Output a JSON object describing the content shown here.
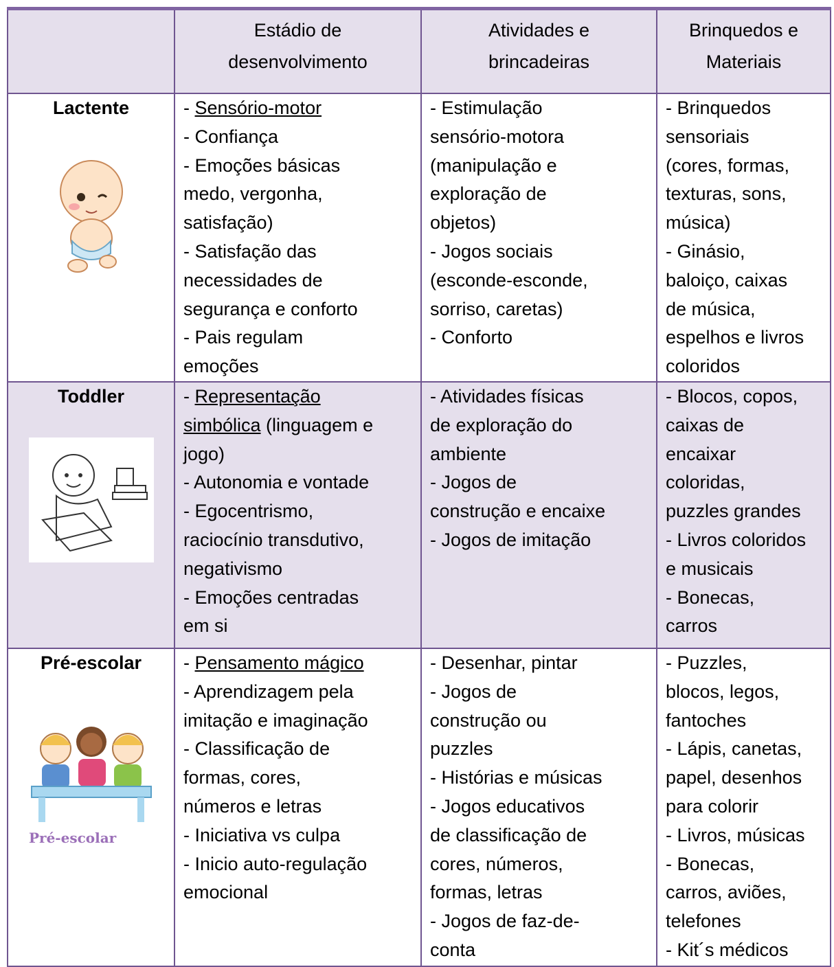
{
  "table": {
    "header": [
      [
        "Estádio de",
        "desenvolvimento"
      ],
      [
        "Atividades e",
        "brincadeiras"
      ],
      [
        "Brinquedos e",
        "Materiais"
      ]
    ],
    "rows": [
      {
        "stage": "Lactente",
        "development": [
          {
            "lead": "- ",
            "underline": "Sensório-motor"
          },
          "- Confiança",
          "- Emoções básicas",
          "medo, vergonha,",
          "satisfação)",
          "- Satisfação das",
          "necessidades de",
          "segurança e conforto",
          "- Pais regulam",
          "emoções"
        ],
        "activities": [
          "- Estimulação",
          "sensório-motora",
          "(manipulação e",
          "exploração de",
          "objetos)",
          "- Jogos sociais",
          "(esconde-esconde,",
          "sorriso, caretas)",
          "- Conforto"
        ],
        "toys": [
          "- Brinquedos",
          "sensoriais",
          "(cores, formas,",
          "texturas, sons,",
          "música)",
          "- Ginásio,",
          "baloiço, caixas",
          "de música,",
          "espelhos e livros",
          "coloridos"
        ]
      },
      {
        "stage": "Toddler",
        "development": [
          {
            "lead": "- ",
            "underline": "Representação"
          },
          {
            "underline": "simbólica",
            "tail": " (linguagem e"
          },
          "jogo)",
          "- Autonomia e vontade",
          "- Egocentrismo,",
          "raciocínio transdutivo,",
          "negativismo",
          "- Emoções centradas",
          "em si"
        ],
        "activities": [
          "- Atividades físicas",
          "de exploração do",
          "ambiente",
          "- Jogos de",
          "construção e encaixe",
          "- Jogos de imitação"
        ],
        "toys": [
          "- Blocos, copos,",
          "caixas de",
          "encaixar",
          "coloridas,",
          "puzzles grandes",
          "- Livros coloridos",
          "e musicais",
          "- Bonecas,",
          "carros"
        ]
      },
      {
        "stage": "Pré-escolar",
        "image_caption": "Pré-escolar",
        "development": [
          {
            "lead": "- ",
            "underline": "Pensamento mágico"
          },
          "- Aprendizagem pela",
          "imitação e imaginação",
          "- Classificação de",
          "formas, cores,",
          "números e letras",
          "- Iniciativa vs culpa",
          "- Inicio auto-regulação",
          "emocional"
        ],
        "activities": [
          "- Desenhar, pintar",
          "- Jogos de",
          "construção ou",
          "puzzles",
          "- Histórias e músicas",
          "- Jogos educativos",
          "de classificação de",
          "cores, números,",
          "formas, letras",
          "- Jogos de faz-de-",
          "conta"
        ],
        "toys": [
          "- Puzzles,",
          "blocos, legos,",
          "fantoches",
          "- Lápis, canetas,",
          "papel, desenhos",
          "para colorir",
          "- Livros, músicas",
          "- Bonecas,",
          "carros, aviões,",
          "telefones",
          "- Kit´s médicos"
        ]
      }
    ]
  }
}
